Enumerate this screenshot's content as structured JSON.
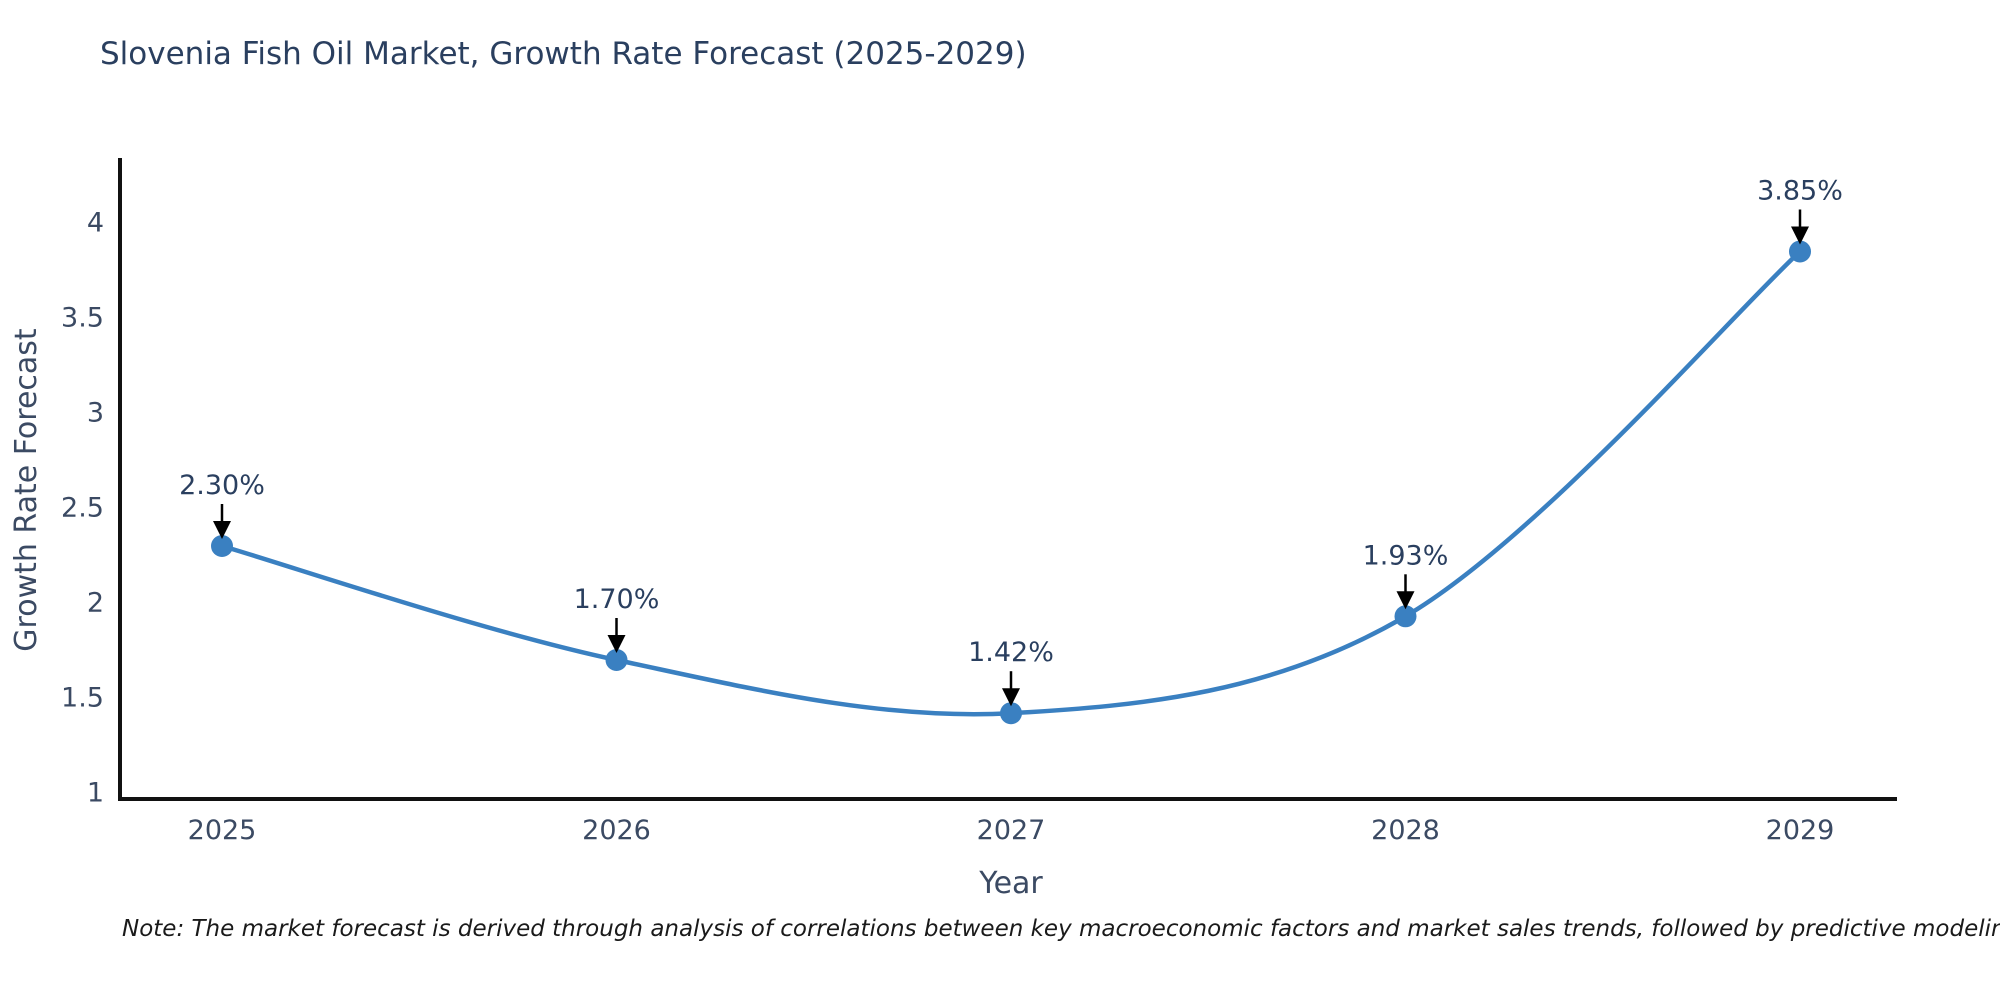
{
  "title": {
    "text": "Slovenia Fish Oil Market, Growth Rate Forecast (2025-2029)",
    "color": "#2a3f5f"
  },
  "note": {
    "text": "Note: The market forecast is derived through analysis of correlations between key macroeconomic factors and market sales trends, followed by predictive modeling to project future sales"
  },
  "chart_data": {
    "type": "line",
    "line_shape": "spline",
    "title": "Slovenia Fish Oil Market, Growth Rate Forecast (2025-2029)",
    "x": [
      "2025",
      "2026",
      "2027",
      "2028",
      "2029"
    ],
    "values": [
      2.3,
      1.7,
      1.42,
      1.93,
      3.85
    ],
    "point_labels": [
      "2.30%",
      "1.70%",
      "1.42%",
      "1.93%",
      "3.85%"
    ],
    "xlabel": "Year",
    "ylabel": "Growth Rate Forecast",
    "yticks": [
      1,
      1.5,
      2,
      2.5,
      3,
      3.5,
      4
    ],
    "ylim": [
      1,
      4.35
    ],
    "grid": false,
    "legend": "none",
    "colors": {
      "line": "#3a80c1",
      "marker": "#3a80c1",
      "annotation_text": "#2a3f5f",
      "annotation_arrow": "#000000",
      "axis_line": "#111111",
      "tick_label": "#3b4a63",
      "axis_title": "#3b4a63"
    }
  }
}
